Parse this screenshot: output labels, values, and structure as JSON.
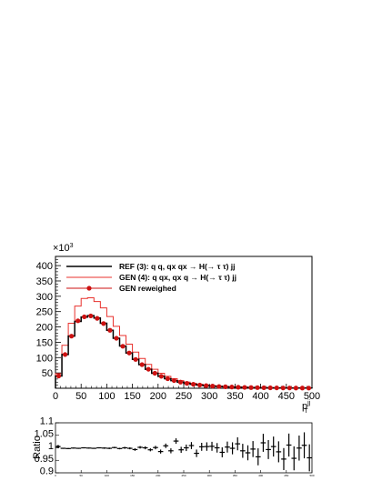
{
  "chart_data": [
    {
      "type": "histogram",
      "title": "",
      "xlabel": "p_T^jj",
      "xlabel_main": "p",
      "xlabel_sup": "jj",
      "xlabel_sub": "T",
      "ylabel": "",
      "y_multiplier": "×10",
      "y_multiplier_exp": "3",
      "xlim": [
        0,
        500
      ],
      "ylim": [
        0,
        430
      ],
      "bin_width": 12.5,
      "x_ticks": [
        "0",
        "50",
        "100",
        "150",
        "200",
        "250",
        "300",
        "350",
        "400",
        "450",
        "500"
      ],
      "y_ticks": [
        "50",
        "100",
        "150",
        "200",
        "250",
        "300",
        "350",
        "400"
      ],
      "legend_position": "top-left",
      "series": [
        {
          "name": "REF (3): q q, qx qx  → H(→  τ  τ) jj",
          "style": "step",
          "color": "#000000",
          "values": [
            40,
            110,
            170,
            218,
            232,
            237,
            229,
            212,
            189,
            163,
            138,
            115,
            94,
            77,
            62,
            49,
            39,
            31,
            25,
            20,
            16,
            13,
            10.5,
            8.5,
            7,
            5.8,
            4.8,
            4,
            3.3,
            2.8,
            2.3,
            2,
            1.7,
            1.4,
            1.2,
            1,
            0.9,
            0.8,
            0.7,
            0.6
          ]
        },
        {
          "name": "GEN (4): q qx, qx q   → H(→  τ  τ) jj",
          "style": "step",
          "color": "#e8312c",
          "values": [
            48,
            140,
            212,
            268,
            293,
            295,
            283,
            262,
            234,
            202,
            172,
            144,
            118,
            97,
            78,
            62,
            49,
            39,
            31,
            25,
            20,
            16,
            13,
            10.5,
            8.5,
            7,
            5.8,
            4.8,
            4,
            3.3,
            2.8,
            2.4,
            2,
            1.7,
            1.4,
            1.2,
            1,
            0.9,
            0.8,
            0.7
          ]
        },
        {
          "name": "GEN reweighed",
          "style": "markers",
          "color": "#cc1111",
          "values": [
            40,
            110,
            170,
            220,
            233,
            236,
            228,
            211,
            189,
            163,
            137,
            115,
            94,
            77,
            62,
            49,
            39,
            31,
            25,
            20,
            16,
            13,
            10.5,
            8.5,
            7,
            5.8,
            4.8,
            4,
            3.3,
            2.8,
            2.3,
            2,
            1.7,
            1.4,
            1.2,
            1,
            0.9,
            0.8,
            0.7,
            0.6
          ]
        }
      ]
    },
    {
      "type": "scatter",
      "ylabel": "Ratio",
      "xlim": [
        0,
        500
      ],
      "ylim": [
        0.9,
        1.1
      ],
      "y_ticks": [
        "1.1",
        "1.05",
        "1",
        "0.95",
        "0.9"
      ],
      "x_ticks": [
        "0",
        "50",
        "100",
        "150",
        "200",
        "250",
        "300",
        "350",
        "400",
        "450",
        "500"
      ],
      "ratio": [
        1.005,
        0.998,
        0.997,
        0.999,
        0.998,
        1.0,
        0.999,
        0.998,
        1.0,
        0.999,
        0.998,
        1.001,
        0.997,
        1.0,
        0.998,
        0.993,
        1.002,
        1.0,
        0.992,
        1.001,
        0.985,
        1.008,
        0.988,
        1.027,
        0.992,
        1.0,
        1.009,
        0.978,
        1.004,
        1.005,
        1.006,
        1.0,
        0.982,
        1.003,
        0.998,
        1.016,
        0.988,
        0.98,
        0.995,
        0.964,
        1.02,
        0.993,
        1.005,
        0.984,
        0.955,
        1.011,
        0.958,
        0.999,
        1.01,
        0.96
      ],
      "error": [
        0.003,
        0.002,
        0.002,
        0.002,
        0.002,
        0.002,
        0.002,
        0.002,
        0.002,
        0.003,
        0.003,
        0.003,
        0.003,
        0.004,
        0.004,
        0.005,
        0.005,
        0.006,
        0.006,
        0.007,
        0.008,
        0.009,
        0.01,
        0.011,
        0.012,
        0.013,
        0.014,
        0.015,
        0.016,
        0.017,
        0.018,
        0.019,
        0.02,
        0.022,
        0.024,
        0.026,
        0.028,
        0.03,
        0.032,
        0.034,
        0.036,
        0.038,
        0.04,
        0.042,
        0.044,
        0.046,
        0.048,
        0.05,
        0.052,
        0.054
      ]
    }
  ]
}
